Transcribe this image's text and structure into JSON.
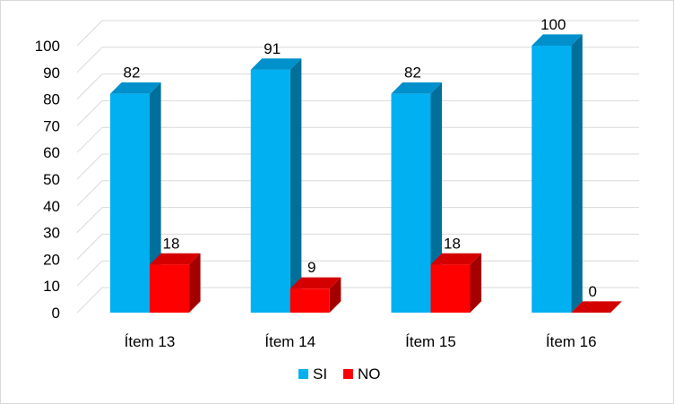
{
  "chart_data": {
    "type": "bar",
    "categories": [
      "Ítem 13",
      "Ítem 14",
      "Ítem 15",
      "Ítem 16"
    ],
    "series": [
      {
        "name": "SI",
        "values": [
          82,
          91,
          82,
          100
        ],
        "color": "#00b0f0",
        "side_color": "#006f99",
        "top_color": "#0090cc"
      },
      {
        "name": "NO",
        "values": [
          18,
          9,
          18,
          0
        ],
        "color": "#ff0000",
        "side_color": "#a50000",
        "top_color": "#d40000"
      }
    ],
    "data_labels": [
      [
        "82",
        "91",
        "82",
        "100"
      ],
      [
        "18",
        "9",
        "18",
        "0"
      ]
    ],
    "ylim": [
      0,
      100
    ],
    "yticks": [
      "0",
      "10",
      "20",
      "30",
      "40",
      "50",
      "60",
      "70",
      "80",
      "90",
      "100"
    ],
    "grid": true,
    "legend_position": "bottom",
    "style": "3d-clustered-column",
    "grid_color": "#d9d9d9"
  }
}
